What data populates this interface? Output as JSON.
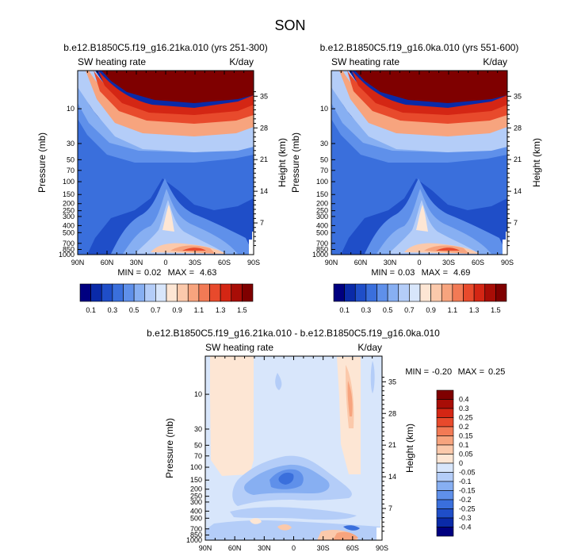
{
  "figure_title": "SON",
  "chart_data": [
    {
      "type": "heatmap",
      "title": "b.e12.B1850C5.f19_g16.21ka.010 (yrs 251-300)",
      "left_label": "SW heating rate",
      "right_label": "K/day",
      "xlabel": "",
      "ylabel": "Pressure (mb)",
      "y2label": "Height (km)",
      "x_ticks": [
        "90N",
        "60N",
        "30N",
        "0",
        "30S",
        "60S",
        "90S"
      ],
      "y_ticks": [
        "10",
        "30",
        "50",
        "70",
        "100",
        "150",
        "200",
        "250",
        "300",
        "400",
        "500",
        "700",
        "850",
        "1000"
      ],
      "y2_ticks": [
        "35",
        "28",
        "21",
        "14",
        "7"
      ],
      "y_scale": "log",
      "ylim_mb": [
        1000,
        3
      ],
      "min_label": "MIN =",
      "min": "0.02",
      "max_label": "MAX =",
      "max": "4.63",
      "colorbar_levels": [
        0.1,
        0.2,
        0.3,
        0.4,
        0.5,
        0.6,
        0.7,
        0.8,
        0.9,
        1.0,
        1.1,
        1.2,
        1.3,
        1.4,
        1.5
      ],
      "colorbar_labels": [
        "0.1",
        "0.3",
        "0.5",
        "0.7",
        "0.9",
        "1.1",
        "1.3",
        "1.5"
      ]
    },
    {
      "type": "heatmap",
      "title": "b.e12.B1850C5.f19_g16.0ka.010 (yrs 551-600)",
      "left_label": "SW heating rate",
      "right_label": "K/day",
      "xlabel": "",
      "ylabel": "Pressure (mb)",
      "y2label": "Height (km)",
      "x_ticks": [
        "90N",
        "60N",
        "30N",
        "0",
        "30S",
        "60S",
        "90S"
      ],
      "y_ticks": [
        "10",
        "30",
        "50",
        "70",
        "100",
        "150",
        "200",
        "250",
        "300",
        "400",
        "500",
        "700",
        "850",
        "1000"
      ],
      "y2_ticks": [
        "35",
        "28",
        "21",
        "14",
        "7"
      ],
      "y_scale": "log",
      "ylim_mb": [
        1000,
        3
      ],
      "min_label": "MIN =",
      "min": "0.03",
      "max_label": "MAX =",
      "max": "4.69",
      "colorbar_levels": [
        0.1,
        0.2,
        0.3,
        0.4,
        0.5,
        0.6,
        0.7,
        0.8,
        0.9,
        1.0,
        1.1,
        1.2,
        1.3,
        1.4,
        1.5
      ],
      "colorbar_labels": [
        "0.1",
        "0.3",
        "0.5",
        "0.7",
        "0.9",
        "1.1",
        "1.3",
        "1.5"
      ]
    },
    {
      "type": "heatmap",
      "title": "b.e12.B1850C5.f19_g16.21ka.010 - b.e12.B1850C5.f19_g16.0ka.010",
      "left_label": "SW heating rate",
      "right_label": "K/day",
      "xlabel": "",
      "ylabel": "Pressure (mb)",
      "y2label": "Height (km)",
      "x_ticks": [
        "90N",
        "60N",
        "30N",
        "0",
        "30S",
        "60S",
        "90S"
      ],
      "y_ticks": [
        "10",
        "30",
        "50",
        "70",
        "100",
        "150",
        "200",
        "250",
        "300",
        "400",
        "500",
        "700",
        "850",
        "1000"
      ],
      "y2_ticks": [
        "35",
        "28",
        "21",
        "14",
        "7"
      ],
      "y_scale": "log",
      "ylim_mb": [
        1000,
        3
      ],
      "min_label": "MIN =",
      "min": "-0.20",
      "max_label": "MAX =",
      "max": "0.25",
      "colorbar_levels": [
        -0.4,
        -0.3,
        -0.25,
        -0.2,
        -0.15,
        -0.1,
        -0.05,
        0,
        0.05,
        0.1,
        0.15,
        0.2,
        0.25,
        0.3,
        0.4
      ],
      "colorbar_labels": [
        "0.4",
        "0.3",
        "0.25",
        "0.2",
        "0.15",
        "0.1",
        "0.05",
        "0",
        "-0.05",
        "-0.1",
        "-0.15",
        "-0.2",
        "-0.25",
        "-0.3",
        "-0.4"
      ]
    }
  ],
  "colors": {
    "palette": [
      "#000080",
      "#0a2aa8",
      "#1f4ec8",
      "#3a6fdc",
      "#5f90ea",
      "#87aff2",
      "#b4cdf8",
      "#d8e6fb",
      "#fde6d4",
      "#fbc9ab",
      "#f7a47e",
      "#f27a55",
      "#e84a2c",
      "#d42614",
      "#a80d06",
      "#7f0000"
    ]
  }
}
